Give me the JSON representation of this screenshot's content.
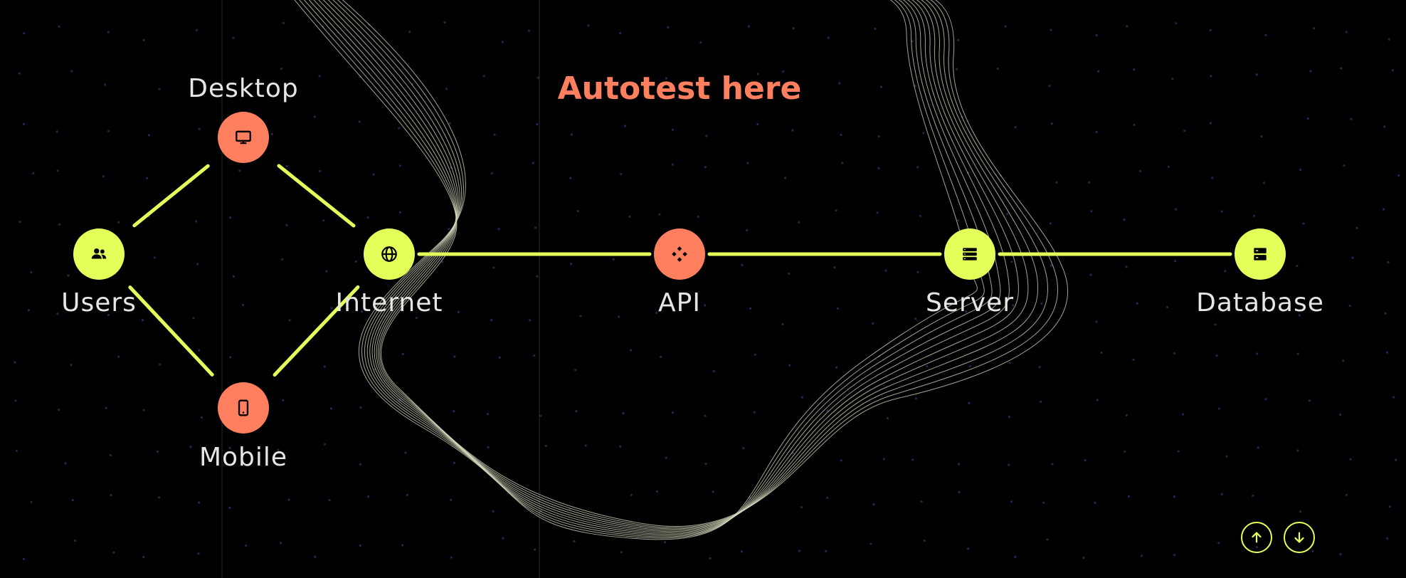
{
  "title": "Autotest here",
  "colors": {
    "background": "#000000",
    "accent_green": "#e4ff5a",
    "accent_orange": "#ff7f5e",
    "label": "#e6e6e6",
    "wave": "#d9dcc0"
  },
  "nodes": [
    {
      "id": "users",
      "label": "Users",
      "icon": "users-icon",
      "color": "#e4ff5a"
    },
    {
      "id": "desktop",
      "label": "Desktop",
      "icon": "monitor-icon",
      "color": "#ff7f5e"
    },
    {
      "id": "mobile",
      "label": "Mobile",
      "icon": "phone-icon",
      "color": "#ff7f5e"
    },
    {
      "id": "internet",
      "label": "Internet",
      "icon": "globe-icon",
      "color": "#e4ff5a"
    },
    {
      "id": "api",
      "label": "API",
      "icon": "api-icon",
      "color": "#ff7f5e"
    },
    {
      "id": "server",
      "label": "Server",
      "icon": "server-icon",
      "color": "#e4ff5a"
    },
    {
      "id": "database",
      "label": "Database",
      "icon": "database-icon",
      "color": "#e4ff5a"
    }
  ],
  "edges": [
    [
      "users",
      "desktop"
    ],
    [
      "users",
      "mobile"
    ],
    [
      "desktop",
      "internet"
    ],
    [
      "mobile",
      "internet"
    ],
    [
      "internet",
      "api"
    ],
    [
      "api",
      "server"
    ],
    [
      "server",
      "database"
    ]
  ],
  "controls": {
    "up_icon": "arrow-up-icon",
    "down_icon": "arrow-down-icon"
  }
}
